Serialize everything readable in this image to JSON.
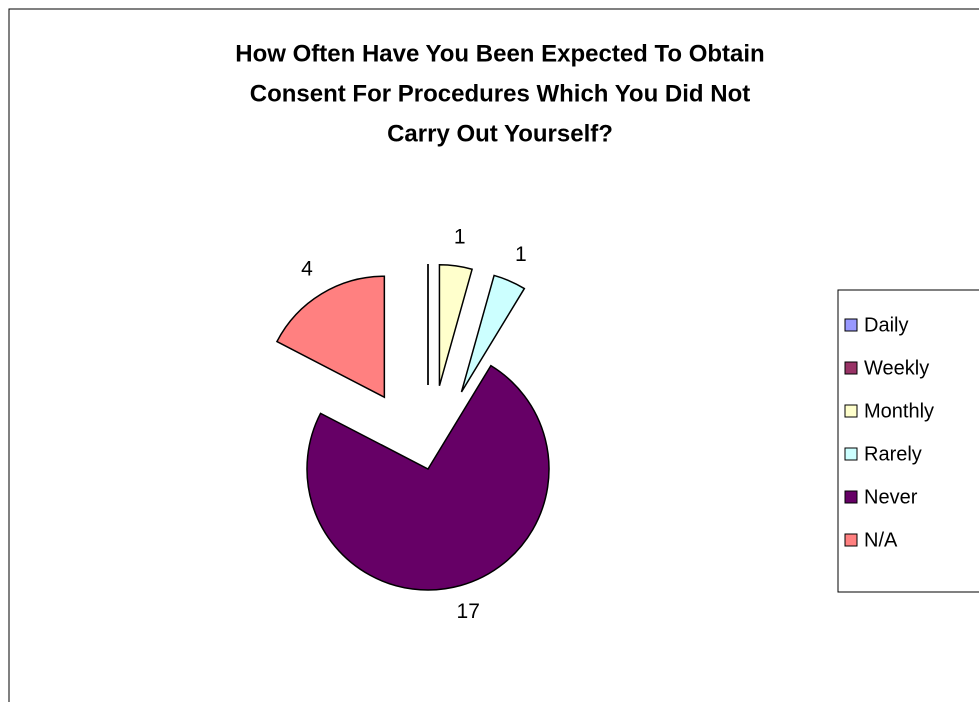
{
  "chart_data": {
    "type": "pie",
    "title": [
      "How Often Have You Been Expected To Obtain",
      "Consent For Procedures Which You Did Not",
      "Carry Out Yourself?"
    ],
    "categories": [
      "Daily",
      "Weekly",
      "Monthly",
      "Rarely",
      "Never",
      "N/A"
    ],
    "values": [
      0,
      0,
      1,
      1,
      17,
      4
    ],
    "colors": [
      "#9999ff",
      "#993366",
      "#ffffcc",
      "#ccffff",
      "#660066",
      "#ff8080"
    ],
    "legend": "right"
  }
}
